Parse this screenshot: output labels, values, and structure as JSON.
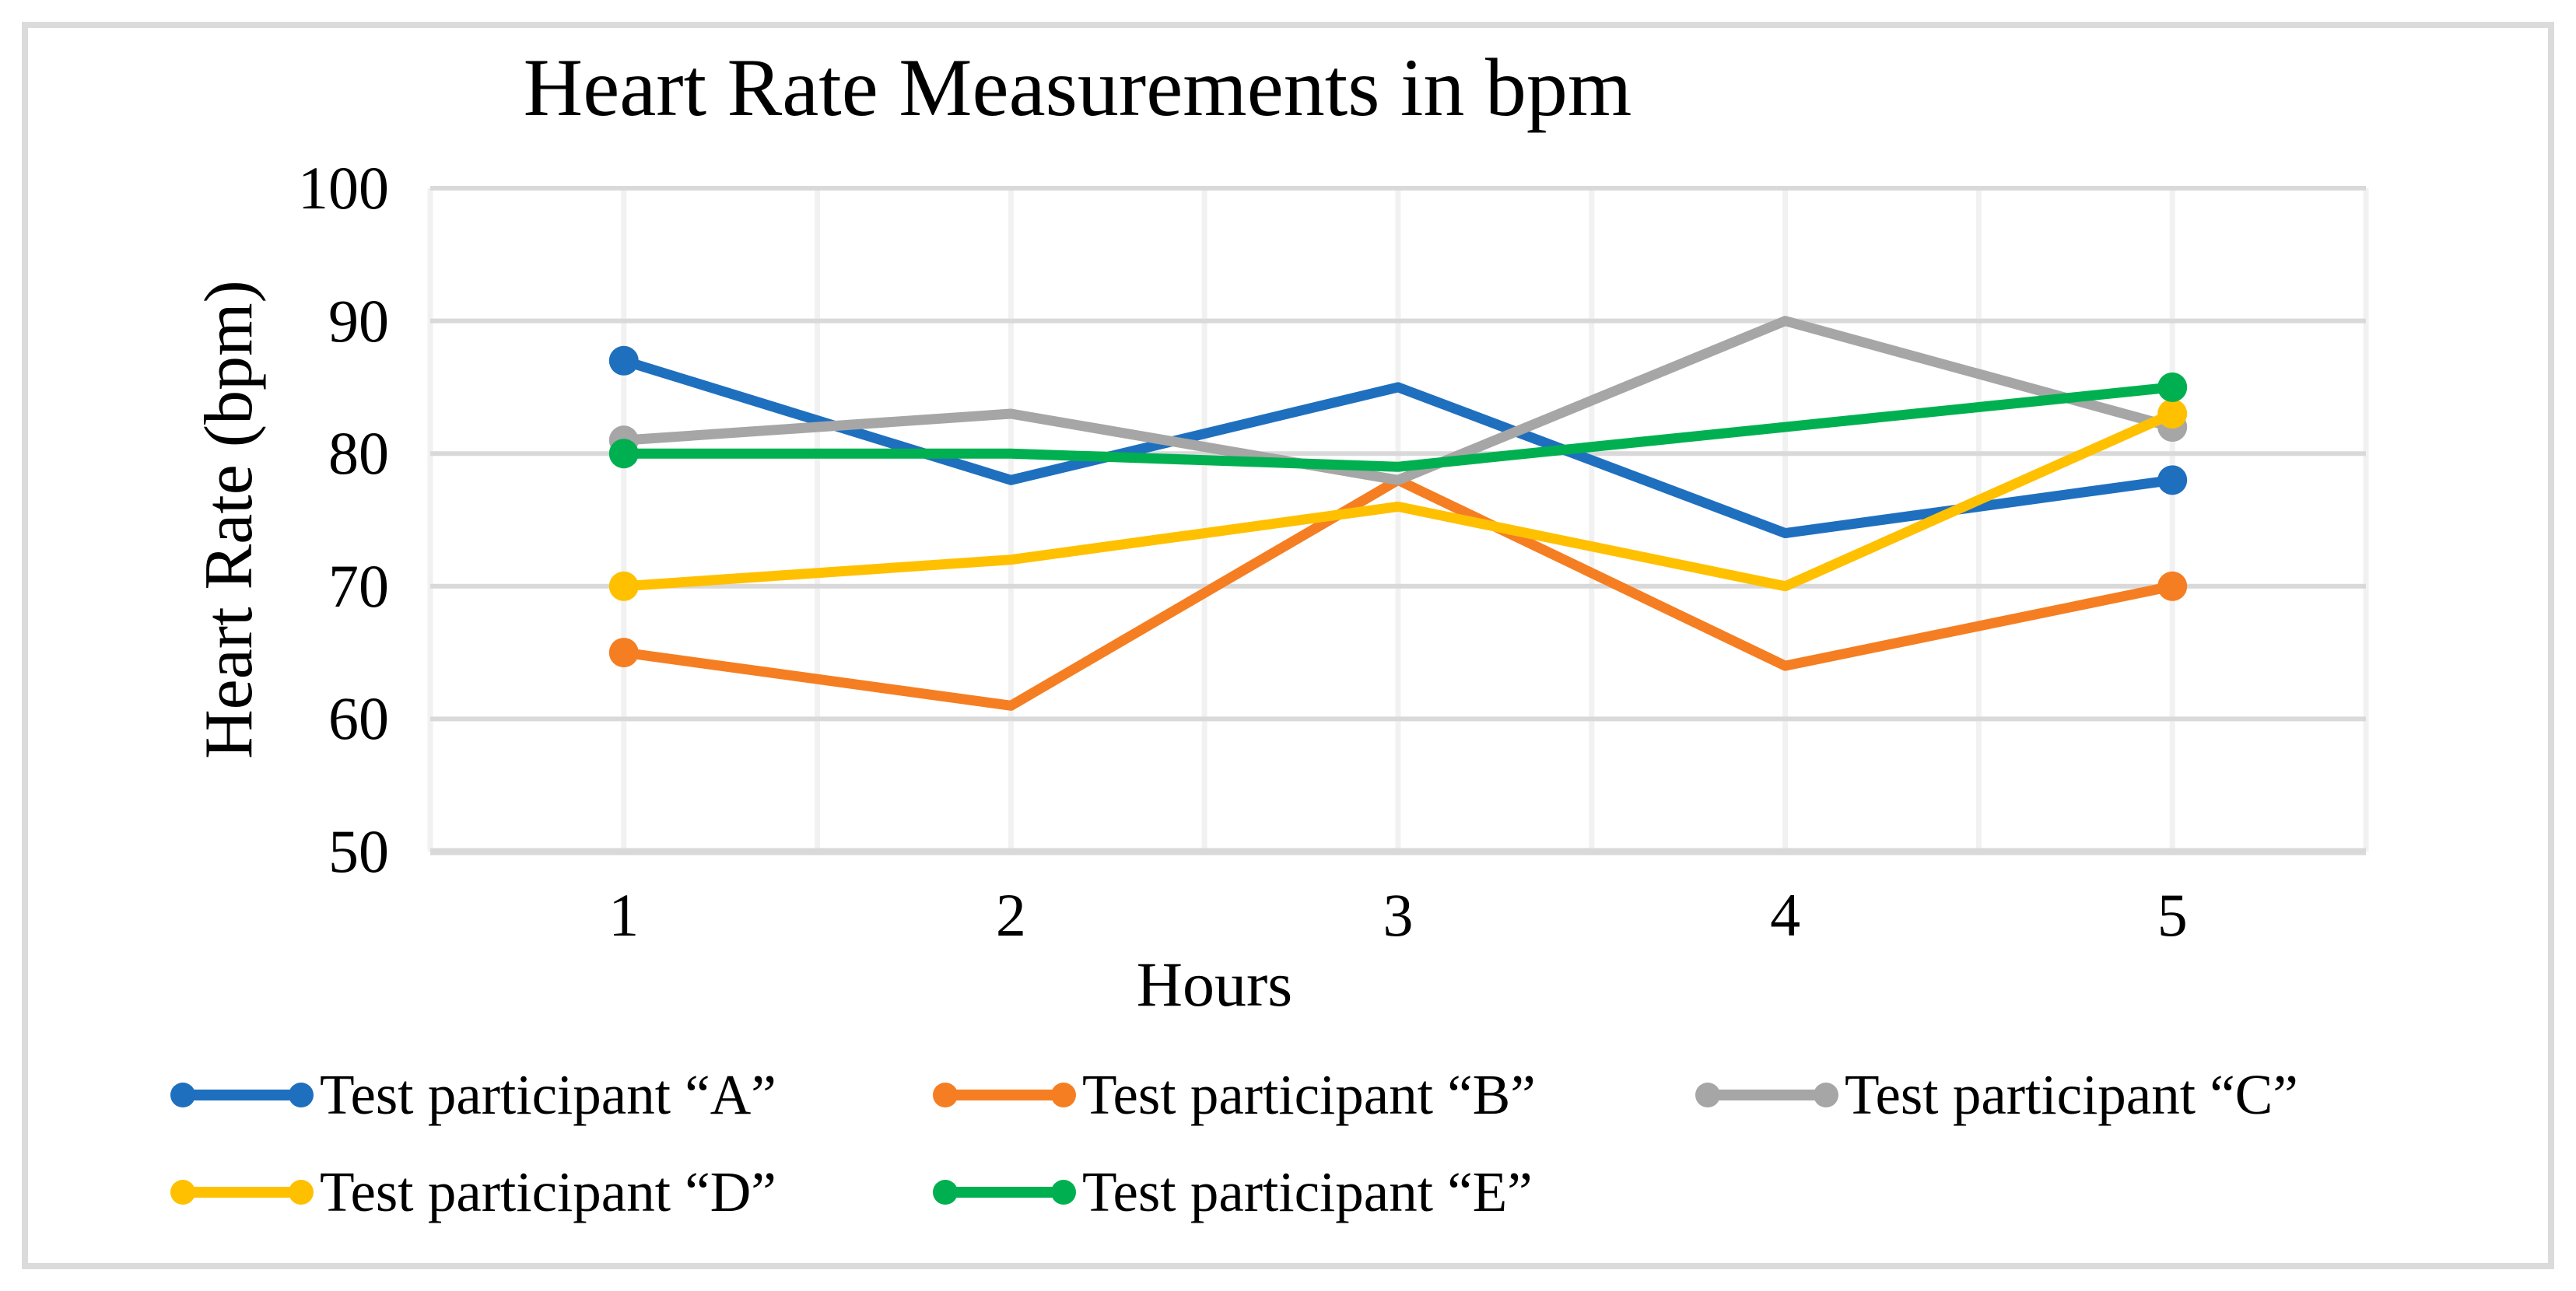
{
  "frame": {
    "border_color": "#DBDBDB",
    "background": "#FFFFFF"
  },
  "chart_data": {
    "type": "line",
    "title": "Heart Rate Measurements in bpm",
    "xlabel": "Hours",
    "ylabel": "Heart Rate (bpm)",
    "x": [
      "1",
      "2",
      "3",
      "4",
      "5"
    ],
    "ylim": [
      50,
      100
    ],
    "yticks": [
      100,
      90,
      80,
      70,
      60,
      50
    ],
    "grid": {
      "horizontal": true,
      "vertical": true
    },
    "grid_color_horizontal": "#D9D9D9",
    "grid_color_vertical": "#F1F1F1",
    "axis_line_color": "#D9D9D9",
    "legend_position": "bottom",
    "marker_style": "round dots on first and last points",
    "series": [
      {
        "name": "Test participant “A”",
        "color": "#1F6FBF",
        "values": [
          87,
          78,
          85,
          74,
          78
        ]
      },
      {
        "name": "Test participant “B”",
        "color": "#F57E22",
        "values": [
          65,
          61,
          78,
          64,
          70
        ]
      },
      {
        "name": "Test participant “C”",
        "color": "#A6A6A6",
        "values": [
          81,
          83,
          78,
          90,
          82
        ]
      },
      {
        "name": "Test participant “D”",
        "color": "#FFC000",
        "values": [
          70,
          72,
          76,
          70,
          83
        ]
      },
      {
        "name": "Test participant “E”",
        "color": "#00B050",
        "values": [
          80,
          80,
          79,
          82,
          85
        ]
      }
    ]
  }
}
